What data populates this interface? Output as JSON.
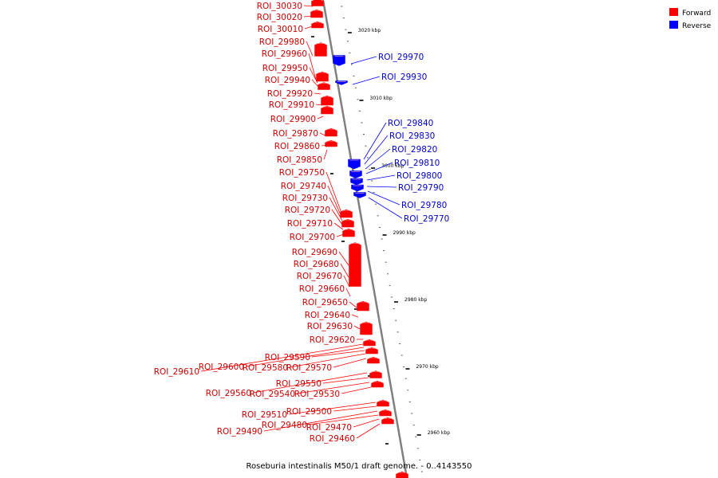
{
  "caption": "Roseburia intestinalis M50/1 draft genome. - 0..4143550",
  "legend": [
    {
      "label": "Forward",
      "color": "#ff0000"
    },
    {
      "label": "Reverse",
      "color": "#0000ff"
    }
  ],
  "colors": {
    "forward": "#ff0000",
    "reverse": "#0000ff",
    "backbone": "#808080",
    "label_forward": "#cc0000",
    "label_reverse": "#0000cc"
  },
  "ticks": [
    "3020 kbp",
    "3010 kbp",
    "3000 kbp",
    "2990 kbp",
    "2980 kbp",
    "2970 kbp",
    "2960 kbp"
  ],
  "features": [
    {
      "name": "ROI_30030",
      "strand": "forward"
    },
    {
      "name": "ROI_30020",
      "strand": "forward"
    },
    {
      "name": "ROI_30010",
      "strand": "forward"
    },
    {
      "name": "ROI_29980",
      "strand": "forward"
    },
    {
      "name": "ROI_29970",
      "strand": "reverse"
    },
    {
      "name": "ROI_29960",
      "strand": "forward"
    },
    {
      "name": "ROI_29950",
      "strand": "forward"
    },
    {
      "name": "ROI_29940",
      "strand": "forward"
    },
    {
      "name": "ROI_29930",
      "strand": "reverse"
    },
    {
      "name": "ROI_29920",
      "strand": "forward"
    },
    {
      "name": "ROI_29910",
      "strand": "forward"
    },
    {
      "name": "ROI_29900",
      "strand": "forward"
    },
    {
      "name": "ROI_29870",
      "strand": "forward"
    },
    {
      "name": "ROI_29860",
      "strand": "forward"
    },
    {
      "name": "ROI_29850",
      "strand": "forward"
    },
    {
      "name": "ROI_29840",
      "strand": "reverse"
    },
    {
      "name": "ROI_29830",
      "strand": "reverse"
    },
    {
      "name": "ROI_29820",
      "strand": "reverse"
    },
    {
      "name": "ROI_29810",
      "strand": "reverse"
    },
    {
      "name": "ROI_29800",
      "strand": "reverse"
    },
    {
      "name": "ROI_29790",
      "strand": "reverse"
    },
    {
      "name": "ROI_29780",
      "strand": "reverse"
    },
    {
      "name": "ROI_29770",
      "strand": "reverse"
    },
    {
      "name": "ROI_29750",
      "strand": "forward"
    },
    {
      "name": "ROI_29740",
      "strand": "forward"
    },
    {
      "name": "ROI_29730",
      "strand": "forward"
    },
    {
      "name": "ROI_29720",
      "strand": "forward"
    },
    {
      "name": "ROI_29710",
      "strand": "forward"
    },
    {
      "name": "ROI_29700",
      "strand": "forward"
    },
    {
      "name": "ROI_29690",
      "strand": "forward"
    },
    {
      "name": "ROI_29680",
      "strand": "forward"
    },
    {
      "name": "ROI_29670",
      "strand": "forward"
    },
    {
      "name": "ROI_29660",
      "strand": "forward"
    },
    {
      "name": "ROI_29650",
      "strand": "forward"
    },
    {
      "name": "ROI_29640",
      "strand": "forward"
    },
    {
      "name": "ROI_29630",
      "strand": "forward"
    },
    {
      "name": "ROI_29620",
      "strand": "forward"
    },
    {
      "name": "ROI_29610",
      "strand": "forward"
    },
    {
      "name": "ROI_29600",
      "strand": "forward"
    },
    {
      "name": "ROI_29590",
      "strand": "forward"
    },
    {
      "name": "ROI_29580",
      "strand": "forward"
    },
    {
      "name": "ROI_29570",
      "strand": "forward"
    },
    {
      "name": "ROI_29560",
      "strand": "forward"
    },
    {
      "name": "ROI_29550",
      "strand": "forward"
    },
    {
      "name": "ROI_29540",
      "strand": "forward"
    },
    {
      "name": "ROI_29530",
      "strand": "forward"
    },
    {
      "name": "ROI_29510",
      "strand": "forward"
    },
    {
      "name": "ROI_29500",
      "strand": "forward"
    },
    {
      "name": "ROI_29490",
      "strand": "forward"
    },
    {
      "name": "ROI_29480",
      "strand": "forward"
    },
    {
      "name": "ROI_29470",
      "strand": "forward"
    },
    {
      "name": "ROI_29460",
      "strand": "forward"
    }
  ]
}
